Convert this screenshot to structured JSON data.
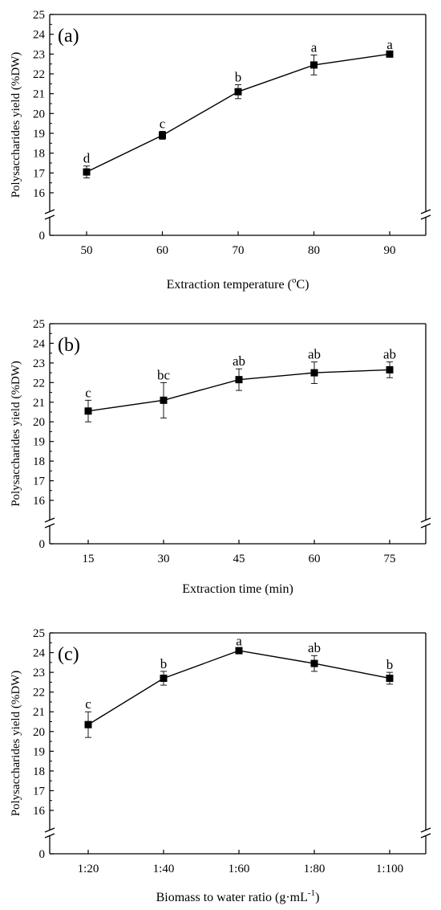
{
  "chart_data": [
    {
      "type": "line",
      "panel_label": "(a)",
      "xlabel": "Extraction temperature (",
      "xlabel_sup": "o",
      "xlabel_tail": "C)",
      "ylabel": "Polysaccharides yield (%DW)",
      "categories": [
        "50",
        "60",
        "70",
        "80",
        "90"
      ],
      "y_break": [
        0,
        15.5
      ],
      "ylim": [
        0,
        25
      ],
      "yticks": [
        "0",
        "16",
        "17",
        "18",
        "19",
        "20",
        "21",
        "22",
        "23",
        "24",
        "25"
      ],
      "series": [
        {
          "values": [
            17.05,
            18.9,
            21.1,
            22.45,
            23.0
          ],
          "errors": [
            0.3,
            0.2,
            0.35,
            0.5,
            0.1
          ],
          "letters": [
            "d",
            "c",
            "b",
            "a",
            "a"
          ]
        }
      ],
      "grid": false
    },
    {
      "type": "line",
      "panel_label": "(b)",
      "xlabel": "Extraction time (min)",
      "ylabel": "Polysaccharides yield (%DW)",
      "categories": [
        "15",
        "30",
        "45",
        "60",
        "75"
      ],
      "y_break": [
        0,
        15.5
      ],
      "ylim": [
        0,
        25
      ],
      "yticks": [
        "0",
        "16",
        "17",
        "18",
        "19",
        "20",
        "21",
        "22",
        "23",
        "24",
        "25"
      ],
      "series": [
        {
          "values": [
            20.55,
            21.1,
            22.15,
            22.5,
            22.65
          ],
          "errors": [
            0.55,
            0.9,
            0.55,
            0.55,
            0.4
          ],
          "letters": [
            "c",
            "bc",
            "ab",
            "ab",
            "ab"
          ]
        }
      ],
      "grid": false
    },
    {
      "type": "line",
      "panel_label": "(c)",
      "xlabel": "Biomass to water ratio (g·mL",
      "xlabel_sup": "-1",
      "xlabel_tail": ")",
      "ylabel": "Polysaccharides yield (%DW)",
      "categories": [
        "1:20",
        "1:40",
        "1:60",
        "1:80",
        "1:100"
      ],
      "y_break": [
        0,
        15.5
      ],
      "ylim": [
        0,
        25
      ],
      "yticks": [
        "0",
        "16",
        "17",
        "18",
        "19",
        "20",
        "21",
        "22",
        "23",
        "24",
        "25"
      ],
      "series": [
        {
          "values": [
            20.35,
            22.7,
            24.1,
            23.45,
            22.7
          ],
          "errors": [
            0.65,
            0.35,
            0.1,
            0.4,
            0.3
          ],
          "letters": [
            "c",
            "b",
            "a",
            "ab",
            "b"
          ]
        }
      ],
      "grid": false
    }
  ]
}
